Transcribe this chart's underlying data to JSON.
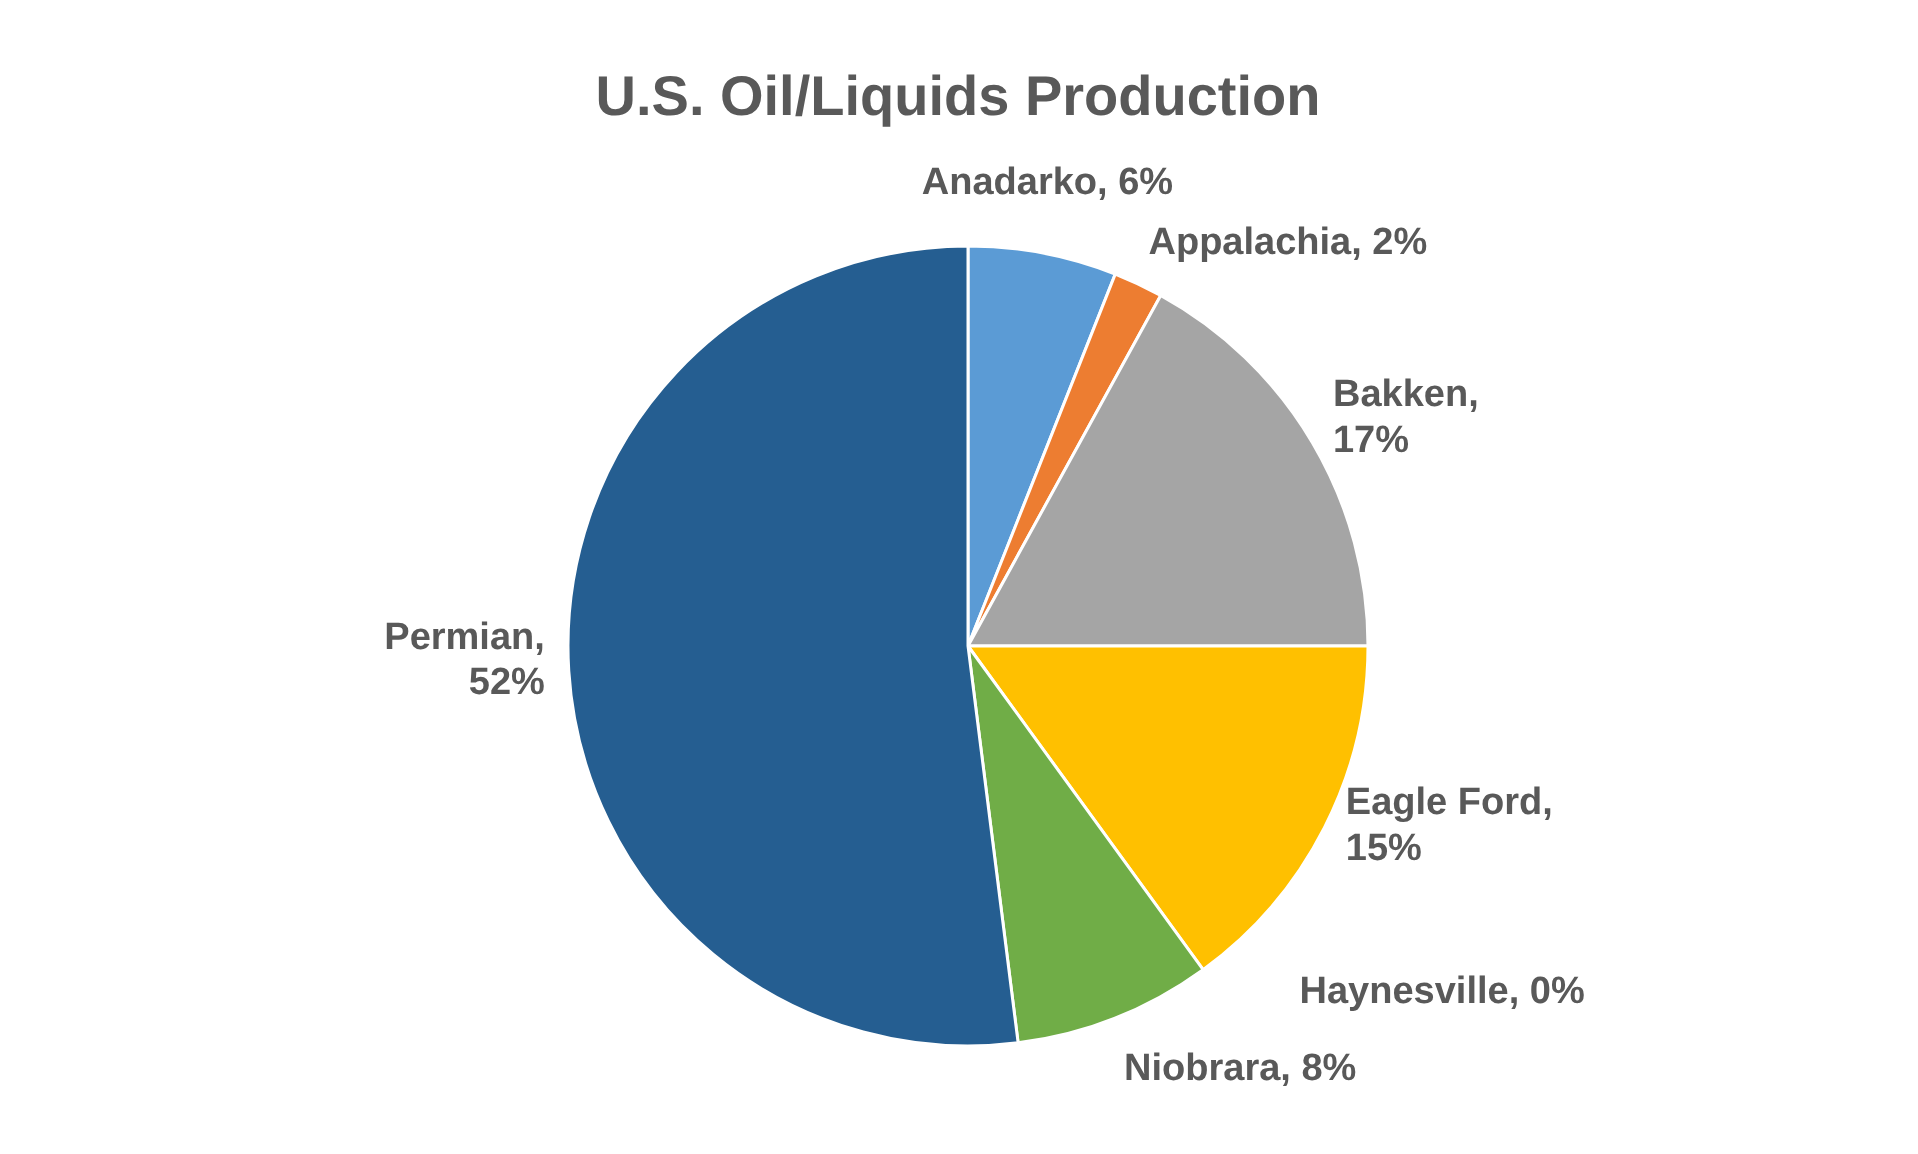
{
  "chart_data": {
    "type": "pie",
    "title": "U.S. Oil/Liquids Production",
    "categories": [
      "Anadarko",
      "Appalachia",
      "Bakken",
      "Eagle Ford",
      "Haynesville",
      "Niobrara",
      "Permian"
    ],
    "values": [
      6,
      2,
      17,
      15,
      0,
      8,
      52
    ],
    "value_labels": [
      ", 6%",
      ", 2%",
      ", 17%",
      ", 15%",
      ", 0%",
      ", 8%",
      ", 52%"
    ],
    "colors": [
      "#5b9bd5",
      "#ed7d31",
      "#a5a5a5",
      "#ffc000",
      "#4472c4",
      "#70ad47",
      "#255e91"
    ],
    "legend": false
  }
}
